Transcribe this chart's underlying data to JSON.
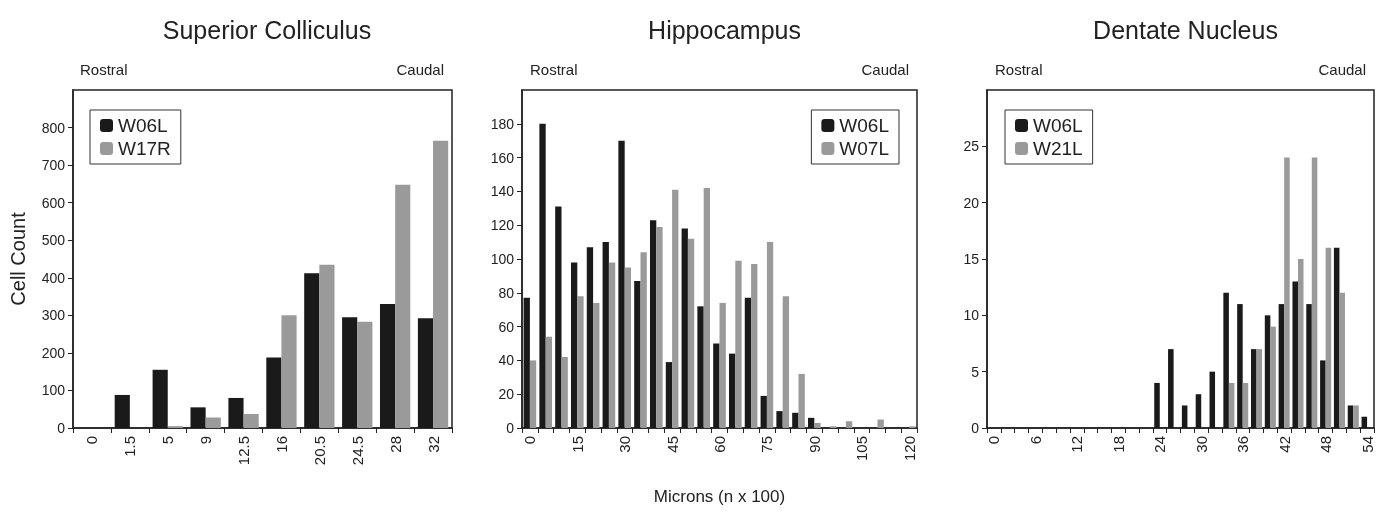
{
  "chart_data": [
    {
      "type": "bar",
      "title": "Superior Colliculus",
      "ylabel": "Cell Count",
      "annotations": [
        "Rostral",
        "Caudal"
      ],
      "categories": [
        "0",
        "1.5",
        "5",
        "9",
        "12.5",
        "16",
        "20.5",
        "24.5",
        "28",
        "32"
      ],
      "series": [
        {
          "name": "W06L",
          "color": "#1a1a1a",
          "values": [
            0,
            88,
            155,
            55,
            80,
            188,
            412,
            295,
            330,
            292
          ]
        },
        {
          "name": "W17R",
          "color": "#9a9a9a",
          "values": [
            0,
            0,
            5,
            28,
            37,
            300,
            435,
            283,
            648,
            765
          ]
        }
      ],
      "ylim": [
        0,
        900
      ],
      "yticks": [
        0,
        100,
        200,
        300,
        400,
        500,
        600,
        700,
        800
      ],
      "legend": "top left",
      "grid": false
    },
    {
      "type": "bar",
      "title": "Hippocampus",
      "xlabel": "Microns (n x 100)",
      "annotations": [
        "Rostral",
        "Caudal"
      ],
      "categories": [
        "0",
        null,
        null,
        "15",
        null,
        null,
        "30",
        null,
        null,
        "45",
        null,
        null,
        "60",
        null,
        null,
        "75",
        null,
        null,
        "90",
        null,
        null,
        "105",
        null,
        null,
        "120"
      ],
      "series": [
        {
          "name": "W06L",
          "color": "#1a1a1a",
          "values": [
            77,
            180,
            131,
            98,
            107,
            110,
            170,
            87,
            123,
            39,
            118,
            72,
            50,
            44,
            77,
            19,
            10,
            9,
            6,
            0,
            null,
            0,
            null,
            null,
            0
          ]
        },
        {
          "name": "W07L",
          "color": "#9a9a9a",
          "values": [
            40,
            54,
            42,
            78,
            74,
            98,
            95,
            104,
            119,
            141,
            112,
            142,
            74,
            99,
            97,
            110,
            78,
            32,
            3,
            1,
            4,
            0,
            5,
            0,
            1
          ]
        }
      ],
      "ylim": [
        0,
        200
      ],
      "yticks": [
        0,
        20,
        40,
        60,
        80,
        100,
        120,
        140,
        160,
        180
      ],
      "legend": "top right",
      "grid": false
    },
    {
      "type": "bar",
      "title": "Dentate Nucleus",
      "annotations": [
        "Rostral",
        "Caudal"
      ],
      "categories": [
        "0",
        null,
        null,
        "6",
        null,
        null,
        "12",
        null,
        null,
        "18",
        null,
        null,
        "24",
        null,
        null,
        "30",
        null,
        null,
        "36",
        null,
        null,
        "42",
        null,
        null,
        "48",
        null,
        null,
        "54"
      ],
      "series": [
        {
          "name": "W06L",
          "color": "#1a1a1a",
          "values": [
            0,
            0,
            0,
            0,
            0,
            0,
            0,
            0,
            0,
            0,
            0,
            0,
            4,
            7,
            2,
            3,
            5,
            12,
            11,
            7,
            10,
            11,
            13,
            11,
            6,
            16,
            2,
            1
          ]
        },
        {
          "name": "W21L",
          "color": "#9a9a9a",
          "values": [
            0,
            0,
            0,
            0,
            0,
            0,
            0,
            0,
            0,
            0,
            0,
            0,
            0,
            0,
            0,
            0,
            0,
            4,
            4,
            7,
            9,
            24,
            15,
            24,
            16,
            12,
            2,
            0
          ]
        }
      ],
      "ylim": [
        0,
        30
      ],
      "yticks": [
        0,
        5,
        10,
        15,
        20,
        25
      ],
      "legend": "top left",
      "grid": false
    }
  ]
}
